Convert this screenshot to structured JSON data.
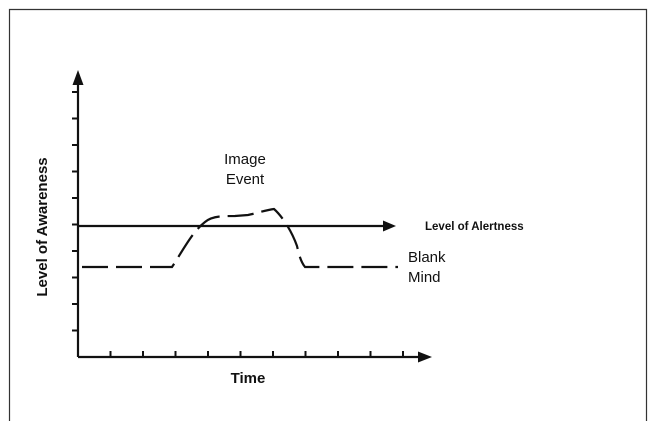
{
  "diagram": {
    "y_axis_label": "Level of Awareness",
    "x_axis_label": "Time",
    "alertness_label": "Level of Alertness",
    "event_label": [
      "Image",
      "Event"
    ],
    "blank_mind_label": [
      "Blank",
      "Mind"
    ]
  },
  "colors": {
    "ink": "#111111",
    "frame": "#333333",
    "background": "#ffffff"
  }
}
